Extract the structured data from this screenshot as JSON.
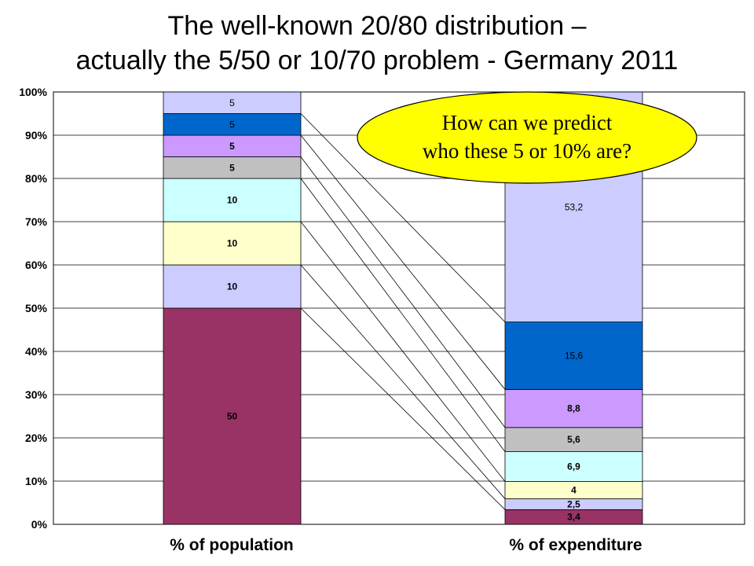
{
  "title_lines": [
    "The well-known 20/80 distribution –",
    "actually the 5/50 or 10/70 problem - Germany 2011"
  ],
  "callout": {
    "lines": [
      "How can we predict",
      "who these 5 or 10% are?"
    ],
    "fill": "#ffff00",
    "stroke": "#000000"
  },
  "chart_data": {
    "type": "bar",
    "stacked": true,
    "title": "The well-known 20/80 distribution – actually the 5/50 or 10/70 problem - Germany 2011",
    "categories": [
      "% of population",
      "% of expenditure"
    ],
    "ylim": [
      0,
      100
    ],
    "yticks": [
      "0%",
      "10%",
      "20%",
      "30%",
      "40%",
      "50%",
      "60%",
      "70%",
      "80%",
      "90%",
      "100%"
    ],
    "grid": true,
    "legend": "none",
    "series": [
      {
        "values": [
          50,
          3.4
        ],
        "labels": [
          "50",
          "3,4"
        ],
        "color": "#993366",
        "label_bold": true
      },
      {
        "values": [
          10,
          2.5
        ],
        "labels": [
          "10",
          "2,5"
        ],
        "color": "#ccccff",
        "label_bold": true
      },
      {
        "values": [
          10,
          4
        ],
        "labels": [
          "10",
          "4"
        ],
        "color": "#ffffcc",
        "label_bold": true
      },
      {
        "values": [
          10,
          6.9
        ],
        "labels": [
          "10",
          "6,9"
        ],
        "color": "#ccffff",
        "label_bold": true
      },
      {
        "values": [
          5,
          5.6
        ],
        "labels": [
          "5",
          "5,6"
        ],
        "color": "#c0c0c0",
        "label_bold": true
      },
      {
        "values": [
          5,
          8.8
        ],
        "labels": [
          "5",
          "8,8"
        ],
        "color": "#cc99ff",
        "label_bold": true
      },
      {
        "values": [
          5,
          15.6
        ],
        "labels": [
          "5",
          "15,6"
        ],
        "color": "#0066cc",
        "label_bold": false
      },
      {
        "values": [
          5,
          53.2
        ],
        "labels": [
          "5",
          "53,2"
        ],
        "color": "#ccccff",
        "label_bold": false
      }
    ]
  }
}
